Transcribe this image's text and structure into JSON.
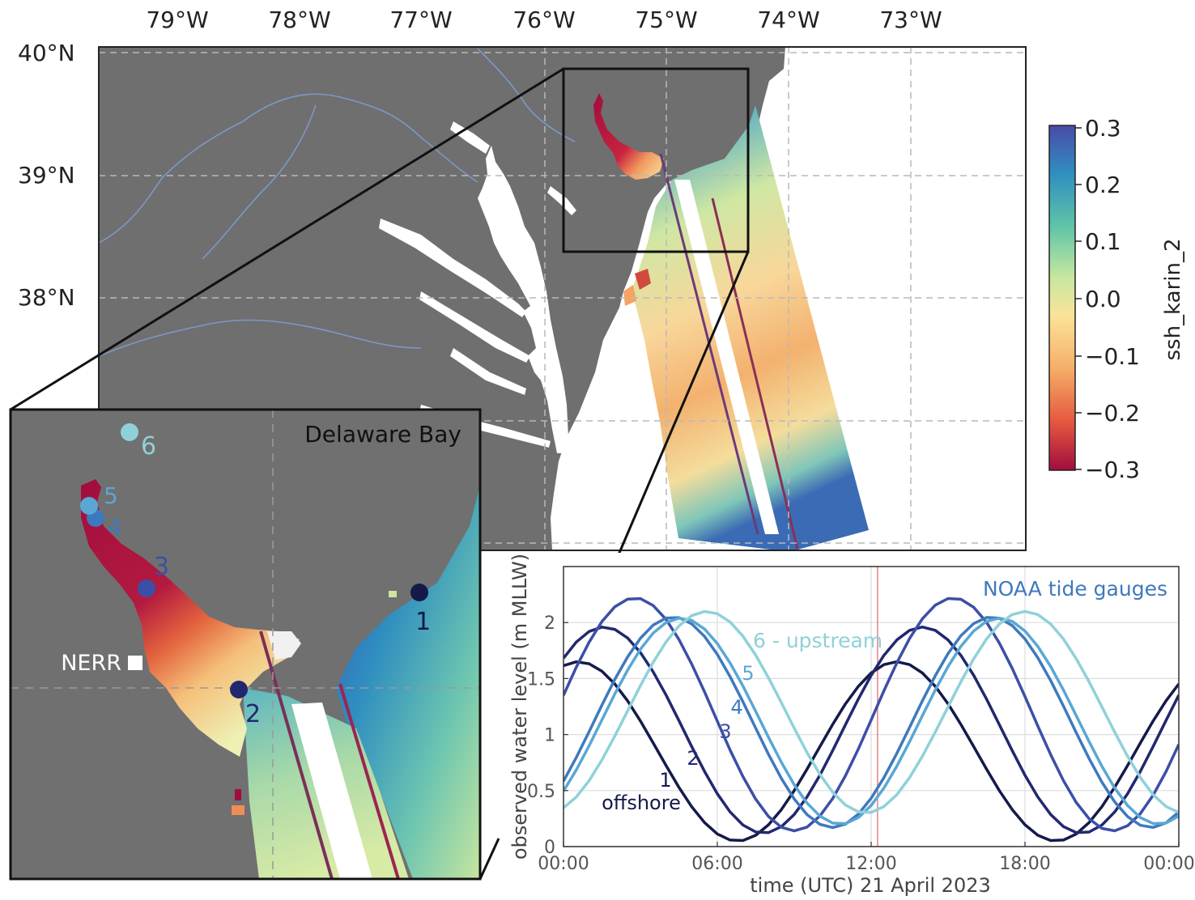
{
  "main_map": {
    "lon_labels": [
      "79°W",
      "78°W",
      "77°W",
      "76°W",
      "75°W",
      "74°W",
      "73°W"
    ],
    "lat_labels": [
      "40°N",
      "39°N",
      "38°N"
    ]
  },
  "colorbar": {
    "label": "ssh_karin_2",
    "ticks": [
      "0.3",
      "0.2",
      "0.1",
      "0.0",
      "−0.1",
      "−0.2",
      "−0.3"
    ],
    "colors": [
      "#4a4aa8",
      "#2f8fc0",
      "#62c6a6",
      "#c6e7a0",
      "#fbe39a",
      "#f6b06a",
      "#e4583f",
      "#a10d3e"
    ]
  },
  "inset": {
    "title": "Delaware Bay",
    "nerr_label": "NERR",
    "stations": [
      {
        "label": "1",
        "color": "#141a4a"
      },
      {
        "label": "2",
        "color": "#22286e"
      },
      {
        "label": "3",
        "color": "#3c4fa6"
      },
      {
        "label": "4",
        "color": "#3f79bd"
      },
      {
        "label": "5",
        "color": "#5aa7d3"
      },
      {
        "label": "6",
        "color": "#8fd1d9"
      }
    ]
  },
  "chart_data": {
    "type": "line",
    "title": "NOAA tide gauges",
    "xlabel": "time (UTC) 21 April 2023",
    "ylabel": "observed water level (m MLLW)",
    "x_tick_labels": [
      "00:00",
      "06:00",
      "12:00",
      "18:00",
      "00:00"
    ],
    "y_tick_labels": [
      "0",
      "0.5",
      "1",
      "1.5",
      "2"
    ],
    "xlim": [
      0,
      24
    ],
    "ylim": [
      0,
      2.5
    ],
    "vline_hour": 12.25,
    "grid": true,
    "series": [
      {
        "name": "1",
        "color": "#141a4a",
        "amp": 0.8,
        "mean": 0.85,
        "peak": 13.0
      },
      {
        "name": "2",
        "color": "#22286e",
        "amp": 0.92,
        "mean": 1.04,
        "peak": 14.0
      },
      {
        "name": "3",
        "color": "#3c4fa6",
        "amp": 1.04,
        "mean": 1.18,
        "peak": 15.2
      },
      {
        "name": "4",
        "color": "#3f79bd",
        "amp": 0.94,
        "mean": 1.11,
        "peak": 16.7
      },
      {
        "name": "5",
        "color": "#5aa7d3",
        "amp": 0.92,
        "mean": 1.12,
        "peak": 17.0
      },
      {
        "name": "6",
        "color": "#8fd1d9",
        "amp": 0.9,
        "mean": 1.2,
        "peak": 18.0
      }
    ],
    "annotations": {
      "s1": "1",
      "s1_sub": "offshore",
      "s2": "2",
      "s3": "3",
      "s4": "4",
      "s5": "5",
      "s6": "6 - upstream"
    }
  }
}
